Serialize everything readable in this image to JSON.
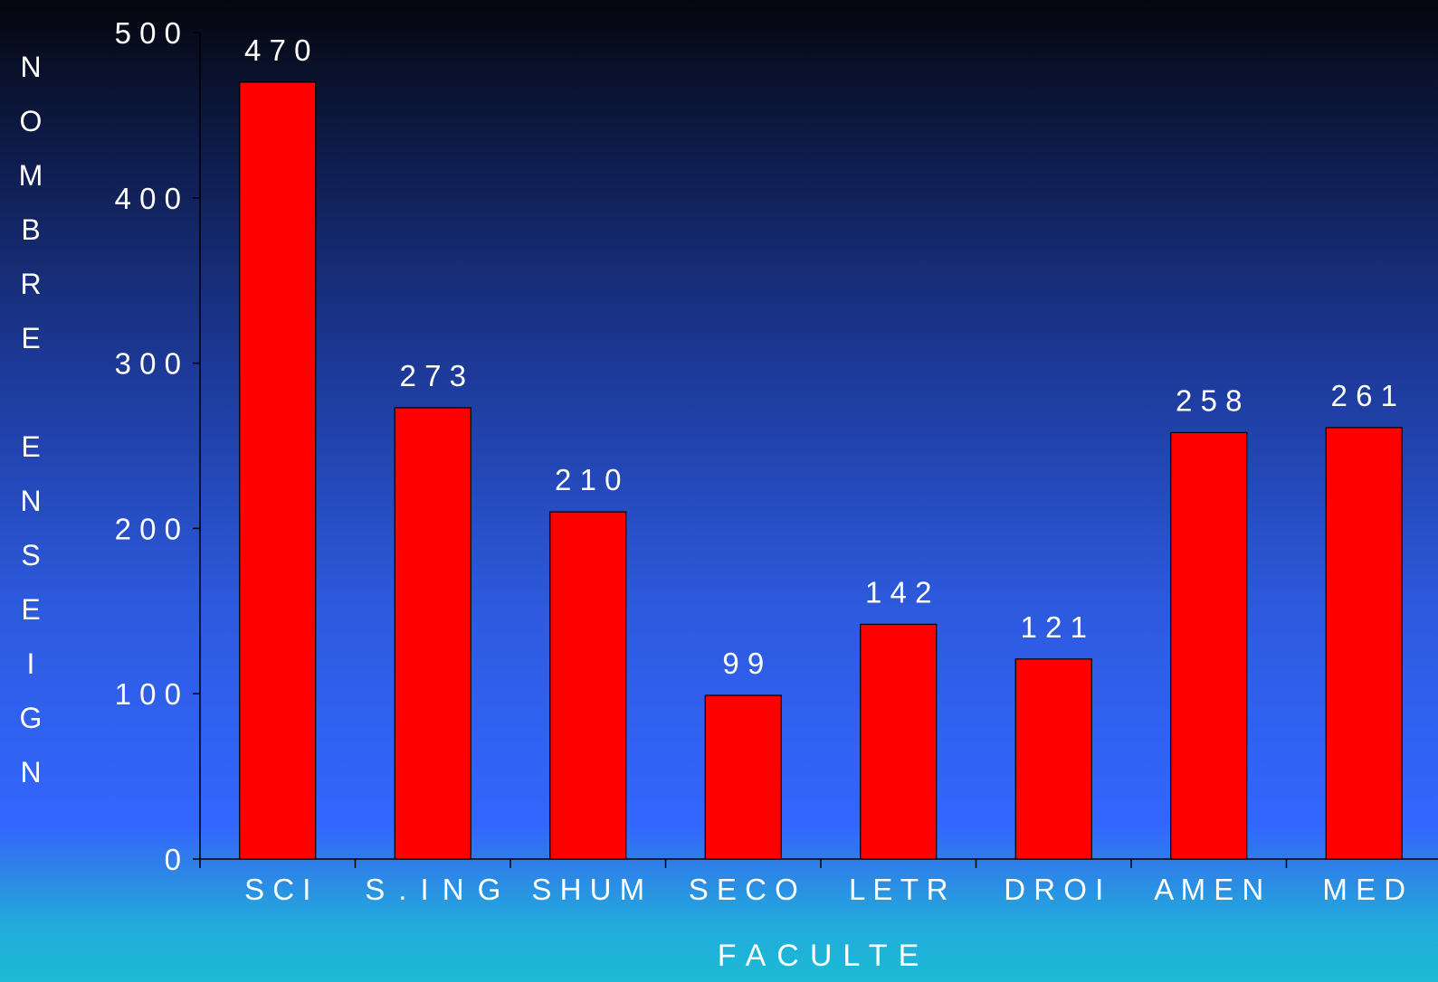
{
  "chart_data": {
    "type": "bar",
    "categories": [
      "SCI",
      "S.ING",
      "SHUM",
      "SECO",
      "LETR",
      "DROI",
      "AMEN",
      "MED"
    ],
    "series": [
      {
        "values": [
          470,
          273,
          210,
          99,
          142,
          121,
          258,
          261
        ]
      }
    ],
    "data_labels": [
      "470",
      "273",
      "210",
      "99",
      "142",
      "121",
      "258",
      "261"
    ],
    "title": "",
    "xlabel": "FACULTE",
    "ylabel": "NOMBRE ENSEIGN",
    "ylim": [
      0,
      500
    ],
    "yticks": [
      0,
      100,
      200,
      300,
      400,
      500
    ],
    "grid": false,
    "legend": "none",
    "colors": {
      "bar": "#ff0000",
      "axis": "#000000",
      "text": "#ffffff"
    }
  }
}
